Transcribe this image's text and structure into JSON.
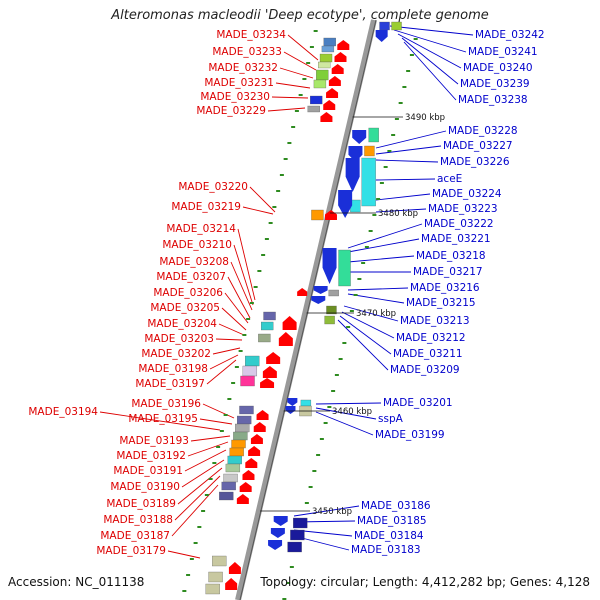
{
  "title": "Alteromonas macleodii 'Deep ecotype', complete genome",
  "accession": "Accession: NC_011138",
  "topology": "Topology: circular; Length: 4,412,282 bp; Genes: 4,128",
  "colors": {
    "left_label": "#dd0000",
    "right_label": "#0000cc",
    "backbone": "#999999",
    "tick": "#2e8b20"
  },
  "kbp_marks": [
    {
      "label": "3490 kbp"
    },
    {
      "label": "3480 kbp"
    },
    {
      "label": "3470 kbp"
    },
    {
      "label": "3460 kbp"
    },
    {
      "label": "3450 kbp"
    }
  ],
  "left_genes": [
    "MADE_03234",
    "MADE_03233",
    "MADE_03232",
    "MADE_03231",
    "MADE_03230",
    "MADE_03229",
    "MADE_03220",
    "MADE_03219",
    "MADE_03214",
    "MADE_03210",
    "MADE_03208",
    "MADE_03207",
    "MADE_03206",
    "MADE_03205",
    "MADE_03204",
    "MADE_03203",
    "MADE_03202",
    "MADE_03198",
    "MADE_03197",
    "MADE_03196",
    "MADE_03194",
    "MADE_03195",
    "MADE_03193",
    "MADE_03192",
    "MADE_03191",
    "MADE_03190",
    "MADE_03189",
    "MADE_03188",
    "MADE_03187",
    "MADE_03179"
  ],
  "right_genes": [
    "MADE_03242",
    "MADE_03241",
    "MADE_03240",
    "MADE_03239",
    "MADE_03238",
    "MADE_03228",
    "MADE_03227",
    "MADE_03226",
    "aceE",
    "MADE_03224",
    "MADE_03223",
    "MADE_03222",
    "MADE_03221",
    "MADE_03218",
    "MADE_03217",
    "MADE_03216",
    "MADE_03215",
    "MADE_03213",
    "MADE_03212",
    "MADE_03211",
    "MADE_03209",
    "MADE_03201",
    "sspA",
    "MADE_03199",
    "MADE_03186",
    "MADE_03185",
    "MADE_03184",
    "MADE_03183"
  ]
}
